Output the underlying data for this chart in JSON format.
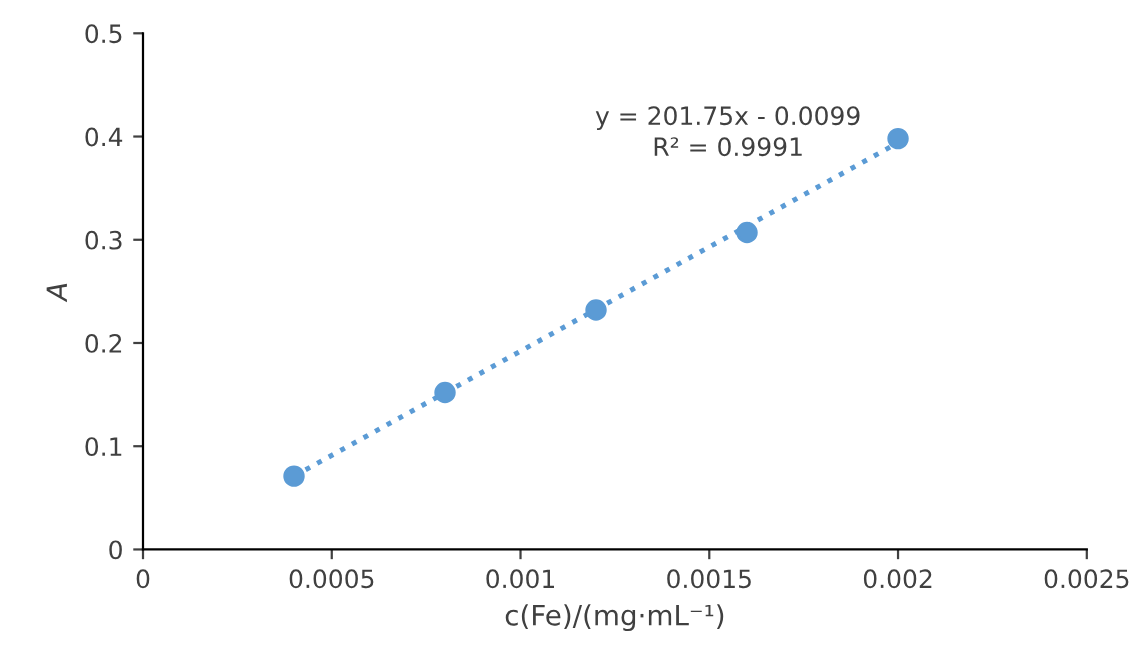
{
  "chart_data": {
    "type": "scatter",
    "xlabel": "c(Fe)/(mg·mL⁻¹)",
    "ylabel": "A",
    "series": [
      {
        "color": "#5b9bd5",
        "marker": "circle",
        "x": [
          0.0004,
          0.0008,
          0.0012,
          0.0016,
          0.002
        ],
        "values": [
          0.071,
          0.152,
          0.232,
          0.307,
          0.398
        ]
      },
      {
        "type": "line",
        "color": "#5b9bd5",
        "line_style": "dotted",
        "x": [
          0.0004,
          0.002
        ],
        "values": [
          0.071,
          0.394
        ]
      }
    ],
    "annotations": [
      "y = 201.75x - 0.0099",
      "R² = 0.9991"
    ],
    "xlim": [
      0,
      0.0025
    ],
    "xticks": [
      0,
      0.0005,
      0.001,
      0.0015,
      0.002,
      0.0025
    ],
    "ylim": [
      0,
      0.5
    ],
    "yticks": [
      0,
      0.1,
      0.2,
      0.3,
      0.4,
      0.5
    ],
    "grid": false,
    "legend": false
  }
}
